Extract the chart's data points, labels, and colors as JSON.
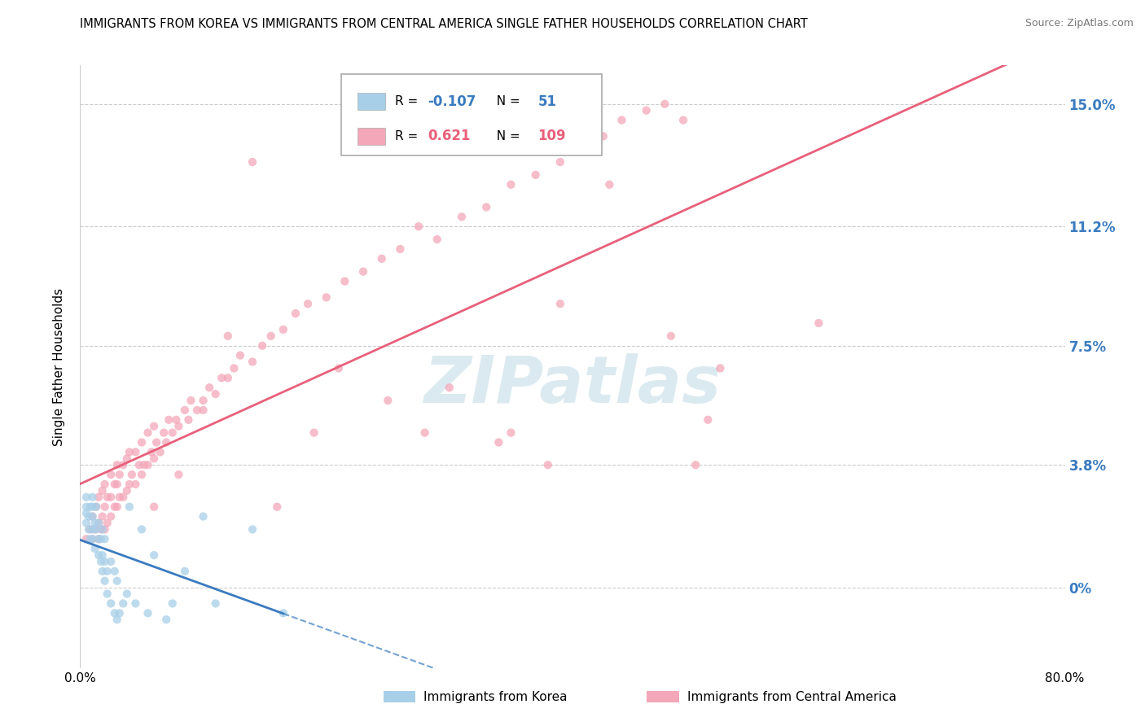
{
  "title": "IMMIGRANTS FROM KOREA VS IMMIGRANTS FROM CENTRAL AMERICA SINGLE FATHER HOUSEHOLDS CORRELATION CHART",
  "source": "Source: ZipAtlas.com",
  "ylabel": "Single Father Households",
  "ytick_labels": [
    "0%",
    "3.8%",
    "7.5%",
    "11.2%",
    "15.0%"
  ],
  "ytick_values": [
    0.0,
    0.038,
    0.075,
    0.112,
    0.15
  ],
  "xlim": [
    0.0,
    0.8
  ],
  "ylim": [
    -0.025,
    0.162
  ],
  "korea_R": -0.107,
  "korea_N": 51,
  "ca_R": 0.621,
  "ca_N": 109,
  "korea_color": "#a8cfe8",
  "ca_color": "#f4a7b9",
  "korea_line_color": "#3a7bbf",
  "ca_line_color": "#e8607a",
  "watermark": "ZIPatlas",
  "background_color": "#ffffff",
  "legend_label_korea": "Immigrants from Korea",
  "legend_label_ca": "Immigrants from Central America",
  "korea_scatter_x": [
    0.005,
    0.005,
    0.005,
    0.005,
    0.007,
    0.007,
    0.008,
    0.008,
    0.01,
    0.01,
    0.01,
    0.01,
    0.01,
    0.012,
    0.012,
    0.013,
    0.013,
    0.015,
    0.015,
    0.015,
    0.017,
    0.017,
    0.018,
    0.018,
    0.018,
    0.02,
    0.02,
    0.02,
    0.022,
    0.022,
    0.025,
    0.025,
    0.028,
    0.028,
    0.03,
    0.03,
    0.032,
    0.035,
    0.038,
    0.04,
    0.045,
    0.05,
    0.055,
    0.06,
    0.07,
    0.075,
    0.085,
    0.1,
    0.11,
    0.14,
    0.165
  ],
  "korea_scatter_y": [
    0.02,
    0.023,
    0.025,
    0.028,
    0.018,
    0.022,
    0.015,
    0.025,
    0.015,
    0.018,
    0.022,
    0.025,
    0.028,
    0.012,
    0.02,
    0.018,
    0.025,
    0.01,
    0.015,
    0.02,
    0.008,
    0.015,
    0.005,
    0.01,
    0.018,
    0.002,
    0.008,
    0.015,
    -0.002,
    0.005,
    -0.005,
    0.008,
    -0.008,
    0.005,
    -0.01,
    0.002,
    -0.008,
    -0.005,
    -0.002,
    0.025,
    -0.005,
    0.018,
    -0.008,
    0.01,
    -0.01,
    -0.005,
    0.005,
    0.022,
    -0.005,
    0.018,
    -0.008
  ],
  "ca_scatter_x": [
    0.005,
    0.008,
    0.01,
    0.01,
    0.012,
    0.013,
    0.015,
    0.015,
    0.015,
    0.017,
    0.018,
    0.018,
    0.02,
    0.02,
    0.02,
    0.022,
    0.022,
    0.025,
    0.025,
    0.025,
    0.028,
    0.028,
    0.03,
    0.03,
    0.03,
    0.032,
    0.032,
    0.035,
    0.035,
    0.038,
    0.038,
    0.04,
    0.04,
    0.042,
    0.045,
    0.045,
    0.048,
    0.05,
    0.05,
    0.052,
    0.055,
    0.055,
    0.058,
    0.06,
    0.06,
    0.062,
    0.065,
    0.068,
    0.07,
    0.072,
    0.075,
    0.078,
    0.08,
    0.085,
    0.088,
    0.09,
    0.095,
    0.1,
    0.105,
    0.11,
    0.115,
    0.12,
    0.125,
    0.13,
    0.14,
    0.148,
    0.155,
    0.165,
    0.175,
    0.185,
    0.2,
    0.215,
    0.23,
    0.245,
    0.26,
    0.275,
    0.29,
    0.31,
    0.33,
    0.35,
    0.37,
    0.39,
    0.41,
    0.425,
    0.44,
    0.46,
    0.475,
    0.49,
    0.5,
    0.51,
    0.52,
    0.48,
    0.43,
    0.39,
    0.34,
    0.3,
    0.6,
    0.35,
    0.38,
    0.28,
    0.25,
    0.21,
    0.19,
    0.16,
    0.14,
    0.12,
    0.1,
    0.08,
    0.06
  ],
  "ca_scatter_y": [
    0.015,
    0.018,
    0.015,
    0.022,
    0.018,
    0.025,
    0.015,
    0.02,
    0.028,
    0.018,
    0.022,
    0.03,
    0.018,
    0.025,
    0.032,
    0.02,
    0.028,
    0.022,
    0.028,
    0.035,
    0.025,
    0.032,
    0.025,
    0.032,
    0.038,
    0.028,
    0.035,
    0.028,
    0.038,
    0.03,
    0.04,
    0.032,
    0.042,
    0.035,
    0.032,
    0.042,
    0.038,
    0.035,
    0.045,
    0.038,
    0.038,
    0.048,
    0.042,
    0.04,
    0.05,
    0.045,
    0.042,
    0.048,
    0.045,
    0.052,
    0.048,
    0.052,
    0.05,
    0.055,
    0.052,
    0.058,
    0.055,
    0.058,
    0.062,
    0.06,
    0.065,
    0.065,
    0.068,
    0.072,
    0.07,
    0.075,
    0.078,
    0.08,
    0.085,
    0.088,
    0.09,
    0.095,
    0.098,
    0.102,
    0.105,
    0.112,
    0.108,
    0.115,
    0.118,
    0.125,
    0.128,
    0.132,
    0.138,
    0.14,
    0.145,
    0.148,
    0.15,
    0.145,
    0.038,
    0.052,
    0.068,
    0.078,
    0.125,
    0.088,
    0.045,
    0.062,
    0.082,
    0.048,
    0.038,
    0.048,
    0.058,
    0.068,
    0.048,
    0.025,
    0.132,
    0.078,
    0.055,
    0.035,
    0.025
  ]
}
